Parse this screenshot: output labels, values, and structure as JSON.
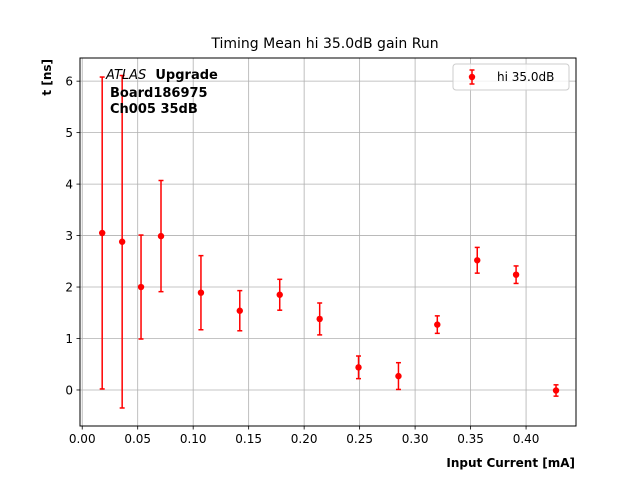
{
  "chart_data": {
    "type": "scatter",
    "title": "Timing Mean hi 35.0dB gain Run",
    "xlabel": "Input Current [mA]",
    "ylabel": "t [ns]",
    "xlim": [
      -0.002,
      0.445
    ],
    "ylim": [
      -0.7,
      6.45
    ],
    "xticks": [
      0.0,
      0.05,
      0.1,
      0.15,
      0.2,
      0.25,
      0.3,
      0.35,
      0.4
    ],
    "xtick_labels": [
      "0.00",
      "0.05",
      "0.10",
      "0.15",
      "0.20",
      "0.25",
      "0.30",
      "0.35",
      "0.40"
    ],
    "yticks": [
      0,
      1,
      2,
      3,
      4,
      5,
      6
    ],
    "ytick_labels": [
      "0",
      "1",
      "2",
      "3",
      "4",
      "5",
      "6"
    ],
    "grid": true,
    "legend_position": "top-right",
    "annotations": {
      "atlas": "ATLAS",
      "upgrade": "Upgrade",
      "board": "Board186975",
      "channel": "Ch005 35dB"
    },
    "series": [
      {
        "name": "hi 35.0dB",
        "color": "#ff0000",
        "x": [
          0.018,
          0.036,
          0.053,
          0.071,
          0.107,
          0.142,
          0.178,
          0.214,
          0.249,
          0.285,
          0.32,
          0.356,
          0.391,
          0.427
        ],
        "y": [
          3.05,
          2.88,
          2.0,
          2.99,
          1.89,
          1.54,
          1.85,
          1.38,
          0.44,
          0.27,
          1.27,
          2.52,
          2.24,
          -0.01
        ],
        "yerr": [
          3.03,
          3.23,
          1.01,
          1.08,
          0.72,
          0.39,
          0.3,
          0.31,
          0.22,
          0.26,
          0.17,
          0.25,
          0.17,
          0.11
        ]
      }
    ]
  }
}
